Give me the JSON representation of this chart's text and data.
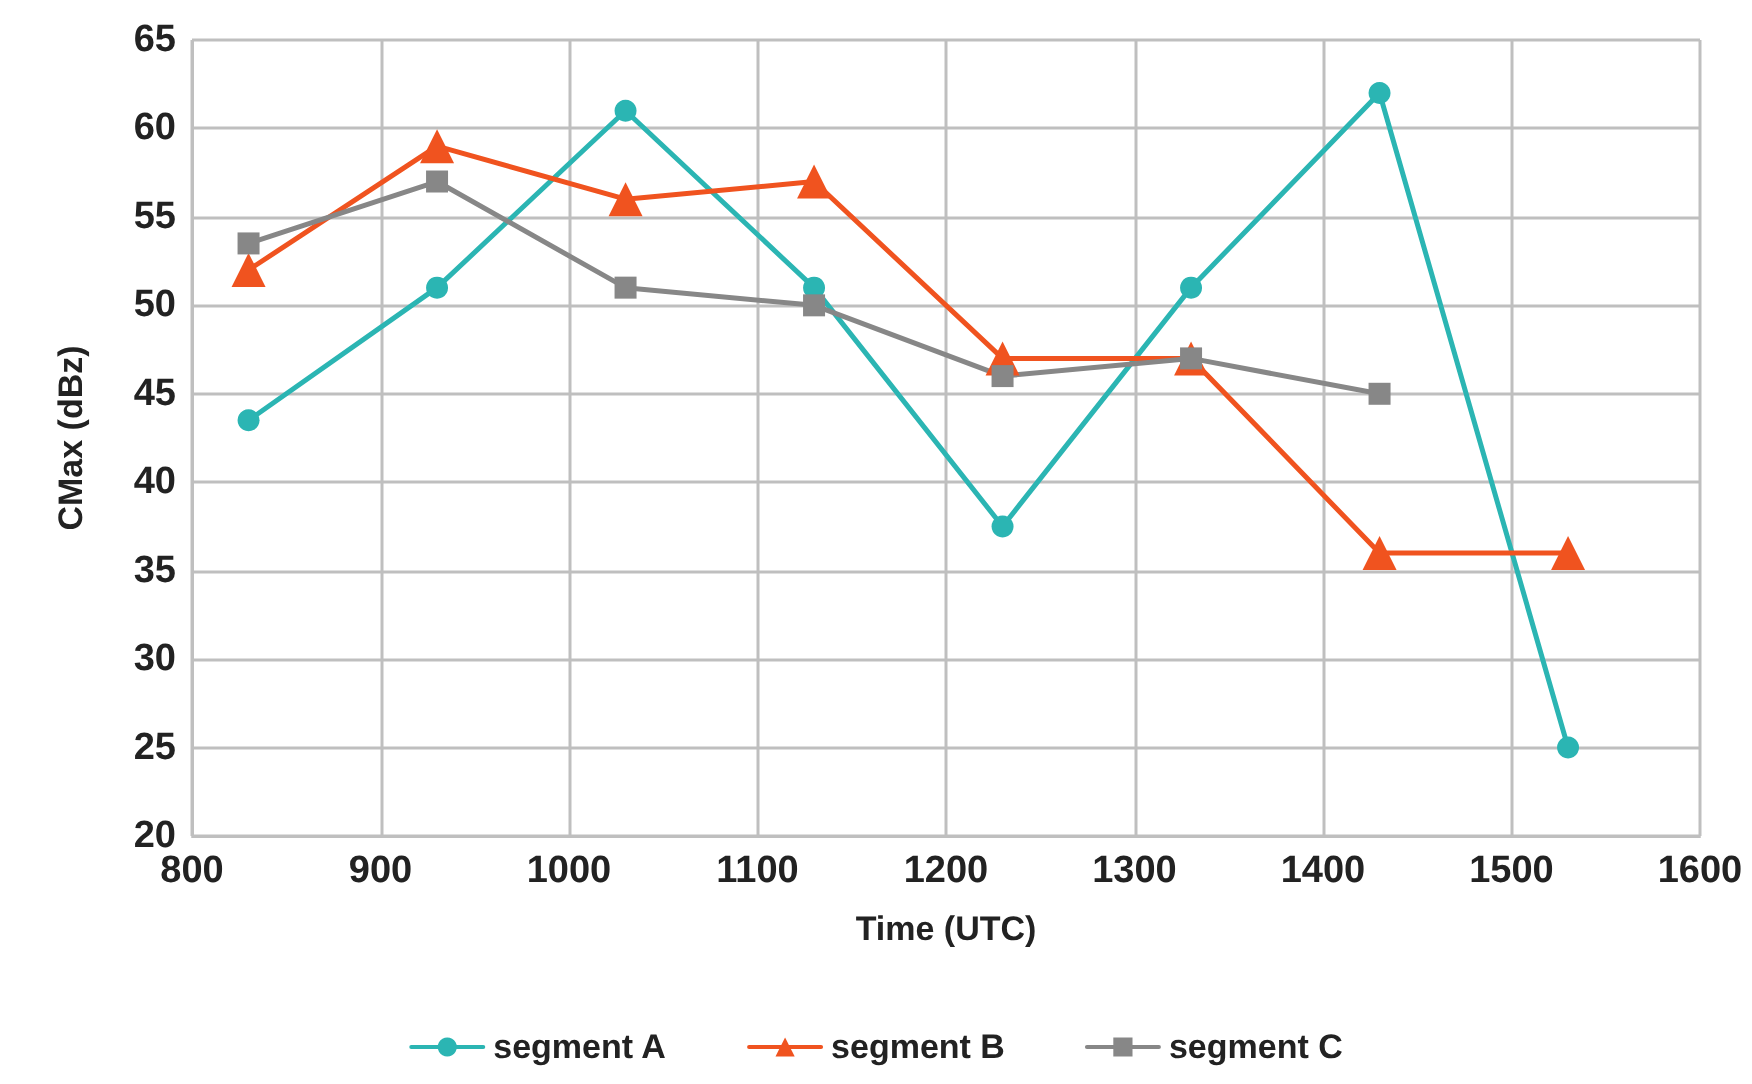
{
  "chart_data": {
    "type": "line",
    "xlabel": "Time (UTC)",
    "ylabel": "CMax (dBz)",
    "x": [
      830,
      930,
      1030,
      1130,
      1230,
      1330,
      1430,
      1530
    ],
    "series": [
      {
        "name": "segment A",
        "color": "#2bb5b3",
        "marker": "circle",
        "values": [
          43.5,
          51,
          61,
          51,
          37.5,
          51,
          62,
          25
        ]
      },
      {
        "name": "segment B",
        "color": "#f0531f",
        "marker": "triangle",
        "values": [
          52,
          59,
          56,
          57,
          47,
          47,
          36,
          36
        ]
      },
      {
        "name": "segment C",
        "color": "#878787",
        "marker": "square",
        "values": [
          53.5,
          57,
          51,
          50,
          46,
          47,
          45,
          null
        ]
      }
    ],
    "xlim": [
      800,
      1600
    ],
    "xticks": [
      800,
      900,
      1000,
      1100,
      1200,
      1300,
      1400,
      1500,
      1600
    ],
    "ylim": [
      20,
      65
    ],
    "yticks": [
      20,
      25,
      30,
      35,
      40,
      45,
      50,
      55,
      60,
      65
    ],
    "grid": true,
    "legend": "bottom",
    "line_style": "solid"
  }
}
